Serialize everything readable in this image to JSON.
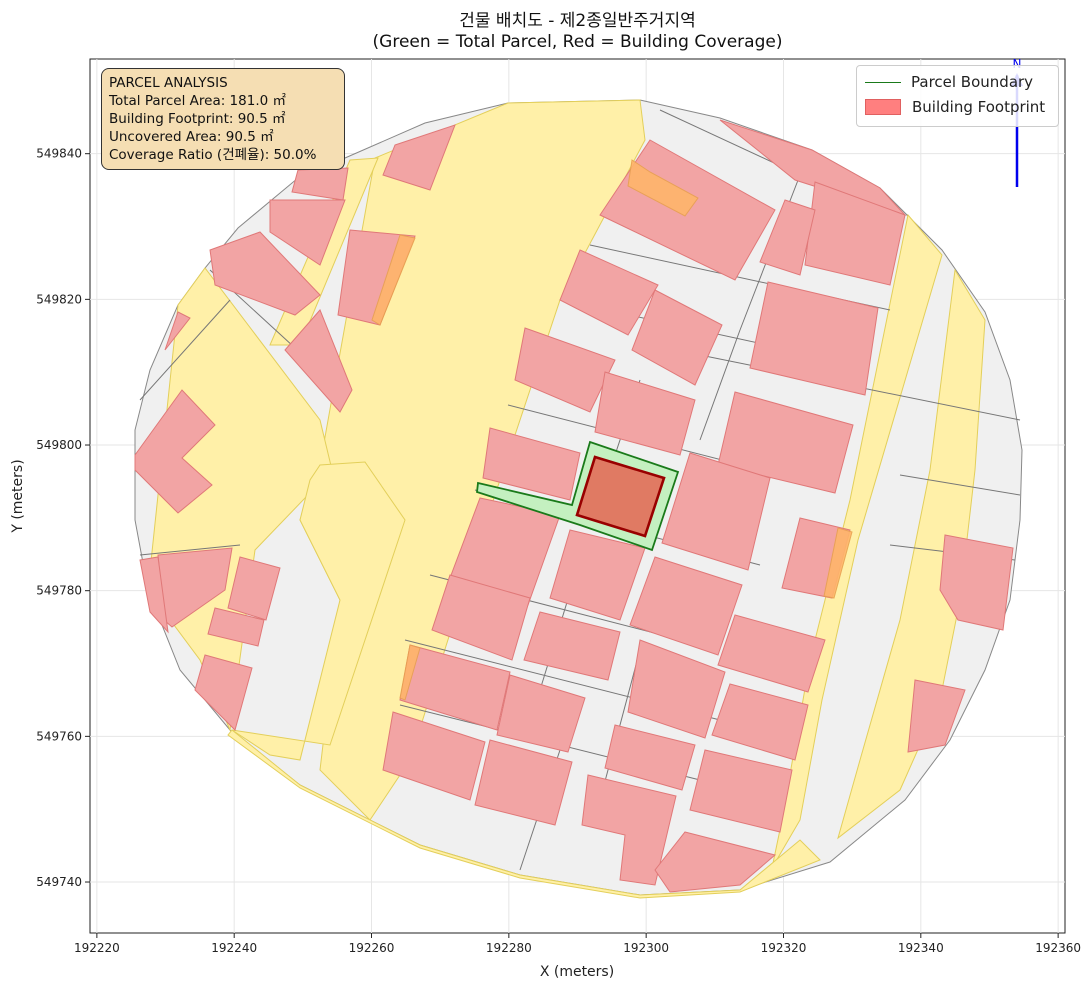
{
  "title": {
    "line1": "건물 배치도 - 제2종일반주거지역",
    "line2": "(Green = Total Parcel, Red = Building Coverage)"
  },
  "axes": {
    "xlabel": "X (meters)",
    "ylabel": "Y (meters)",
    "xticks": [
      "192220",
      "192240",
      "192260",
      "192280",
      "192300",
      "192320",
      "192340",
      "192360"
    ],
    "yticks": [
      "549740",
      "549760",
      "549780",
      "549800",
      "549820",
      "549840"
    ],
    "xlim": [
      192219,
      192361
    ],
    "ylim": [
      549733,
      549853
    ]
  },
  "info_box": {
    "heading": "PARCEL ANALYSIS",
    "total": "Total Parcel Area: 181.0 ㎡",
    "footprint": "Building Footprint: 90.5 ㎡",
    "uncovered": "Uncovered Area: 90.5 ㎡",
    "ratio": "Coverage Ratio (건폐율): 50.0%"
  },
  "legend": {
    "parcel": "Parcel Boundary",
    "building": "Building Footprint"
  },
  "colors": {
    "road": "#fff0a8",
    "lot": "#f0f0f0",
    "building": "#f2a4a4",
    "highlight_building": "#e07a63",
    "parcel_fill": "#c4f0c0",
    "parcel_line": "#1a7a1a",
    "north_arrow": "#0000ee"
  },
  "north_arrow": "N"
}
